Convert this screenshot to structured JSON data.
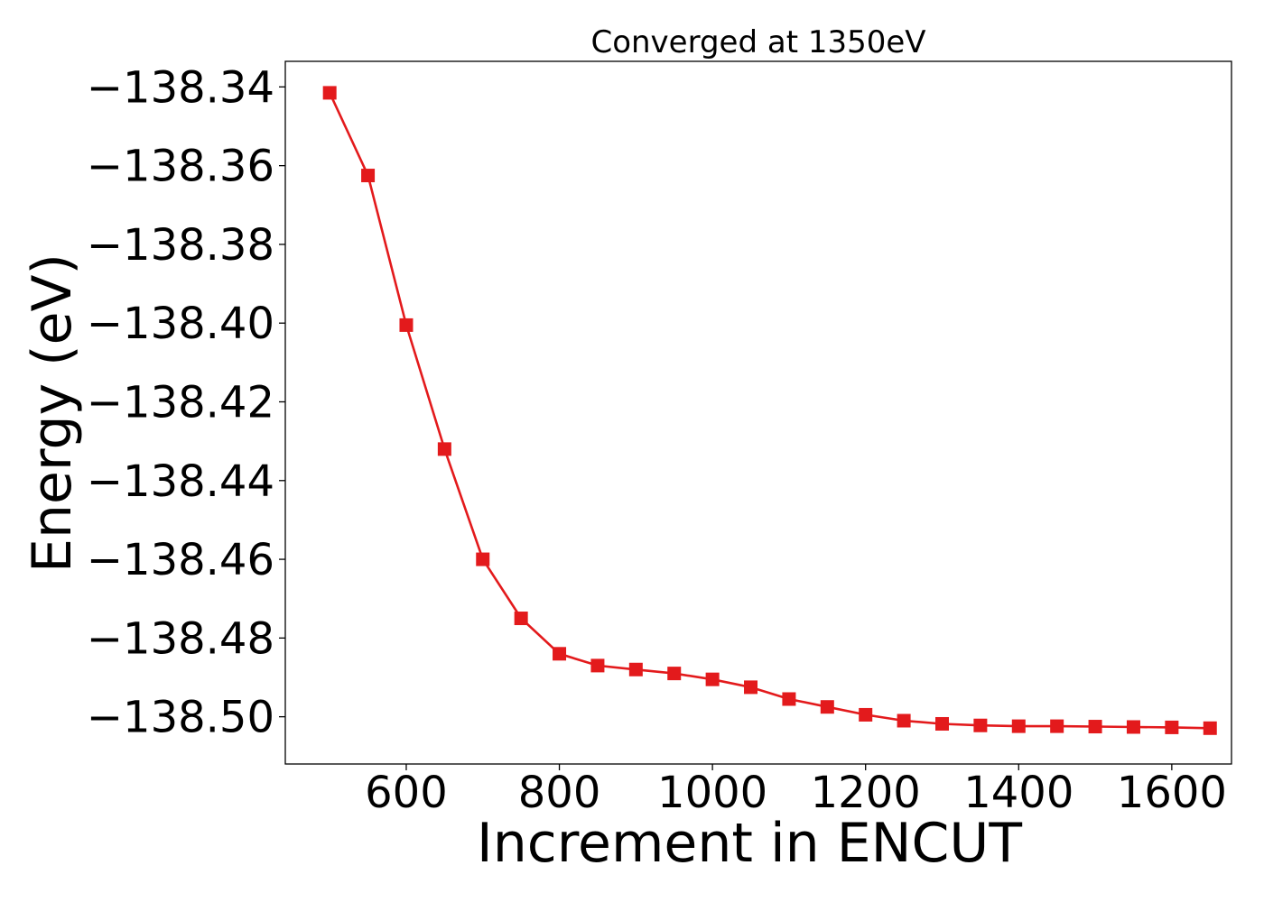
{
  "chart_data": {
    "type": "line",
    "title": "Converged at 1350eV",
    "xlabel": "Increment in ENCUT",
    "ylabel": "Energy (eV)",
    "xlim": [
      442,
      1678
    ],
    "ylim": [
      -138.512,
      -138.3335
    ],
    "xticks": [
      600,
      800,
      1000,
      1200,
      1400,
      1600
    ],
    "xtick_labels": [
      "600",
      "800",
      "1000",
      "1200",
      "1400",
      "1600"
    ],
    "yticks": [
      -138.34,
      -138.36,
      -138.38,
      -138.4,
      -138.42,
      -138.44,
      -138.46,
      -138.48,
      -138.5
    ],
    "ytick_labels": [
      "−138.34",
      "−138.36",
      "−138.38",
      "−138.40",
      "−138.42",
      "−138.44",
      "−138.46",
      "−138.48",
      "−138.50"
    ],
    "grid": false,
    "series": [
      {
        "color": "#e31a1c",
        "marker": "square",
        "x": [
          500,
          550,
          600,
          650,
          700,
          750,
          800,
          850,
          900,
          950,
          1000,
          1050,
          1100,
          1150,
          1200,
          1250,
          1300,
          1350,
          1400,
          1450,
          1500,
          1550,
          1600,
          1650
        ],
        "y": [
          -138.3415,
          -138.3625,
          -138.4005,
          -138.432,
          -138.46,
          -138.475,
          -138.484,
          -138.487,
          -138.488,
          -138.489,
          -138.4905,
          -138.4925,
          -138.4955,
          -138.4975,
          -138.4995,
          -138.501,
          -138.5018,
          -138.5022,
          -138.5024,
          -138.5024,
          -138.5025,
          -138.5026,
          -138.5027,
          -138.5029
        ]
      }
    ]
  }
}
